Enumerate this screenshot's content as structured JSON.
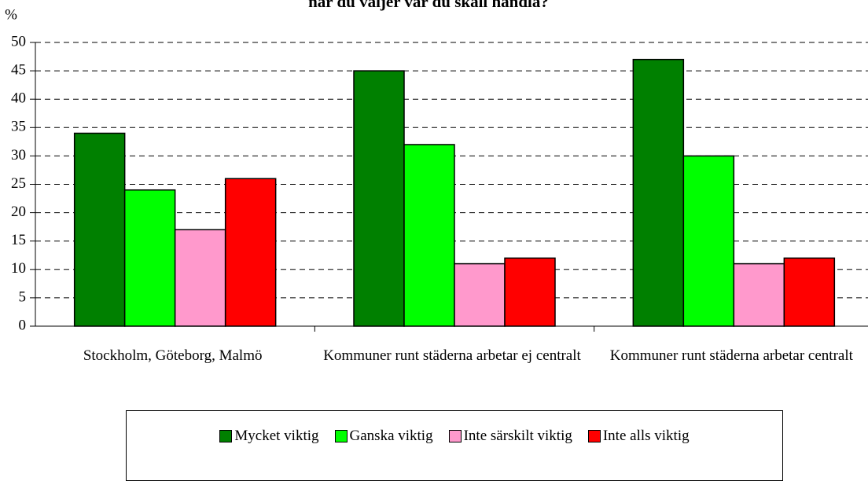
{
  "chart_data": {
    "type": "bar",
    "title": "när du väljer var du skall handla?",
    "y_label": "%",
    "categories": [
      "Stockholm, Göteborg, Malmö",
      "Kommuner runt städerna arbetar ej centralt",
      "Kommuner runt städerna arbetar centralt"
    ],
    "series": [
      {
        "name": "Mycket viktig",
        "color": "#008000",
        "values": [
          34,
          45,
          47
        ]
      },
      {
        "name": "Ganska viktig",
        "color": "#00ff00",
        "values": [
          24,
          32,
          30
        ]
      },
      {
        "name": "Inte särskilt viktig",
        "color": "#ff99cc",
        "values": [
          17,
          11,
          11
        ]
      },
      {
        "name": "Inte alls viktig",
        "color": "#ff0000",
        "values": [
          26,
          12,
          12
        ]
      }
    ],
    "ylim": [
      0,
      50
    ],
    "yticks": [
      0,
      5,
      10,
      15,
      20,
      25,
      30,
      35,
      40,
      45,
      50
    ],
    "grid": true,
    "legend": "bottom"
  }
}
